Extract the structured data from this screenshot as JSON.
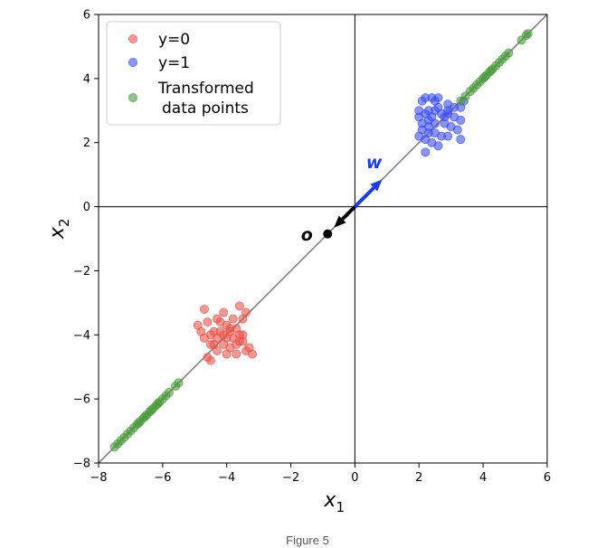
{
  "chart_data": {
    "type": "scatter",
    "xlabel": "x",
    "xlabel_sub": "1",
    "ylabel": "x",
    "ylabel_sub": "2",
    "xlim": [
      -8,
      6
    ],
    "ylim": [
      -8,
      6
    ],
    "x_ticks": [
      -8,
      -6,
      -4,
      -2,
      0,
      2,
      4,
      6
    ],
    "y_ticks": [
      -8,
      -6,
      -4,
      -2,
      0,
      2,
      4,
      6
    ],
    "grid": false,
    "axis_lines": true,
    "legend_position": "top-left",
    "projection_line": {
      "direction": [
        1,
        1
      ],
      "color": "#808080"
    },
    "series": [
      {
        "name": "y=0",
        "color": "#e8544a",
        "points": [
          [
            -4.7,
            -3.2
          ],
          [
            -4.9,
            -3.7
          ],
          [
            -4.6,
            -3.6
          ],
          [
            -4.3,
            -3.5
          ],
          [
            -4.1,
            -3.3
          ],
          [
            -3.8,
            -3.5
          ],
          [
            -3.6,
            -3.1
          ],
          [
            -3.4,
            -3.3
          ],
          [
            -3.5,
            -3.5
          ],
          [
            -4.0,
            -3.7
          ],
          [
            -3.9,
            -3.9
          ],
          [
            -4.2,
            -3.9
          ],
          [
            -4.4,
            -3.9
          ],
          [
            -4.5,
            -4.0
          ],
          [
            -4.3,
            -4.1
          ],
          [
            -4.1,
            -4.0
          ],
          [
            -3.8,
            -4.1
          ],
          [
            -3.6,
            -4.0
          ],
          [
            -3.5,
            -4.2
          ],
          [
            -3.7,
            -4.3
          ],
          [
            -3.9,
            -4.4
          ],
          [
            -4.1,
            -4.3
          ],
          [
            -4.3,
            -4.5
          ],
          [
            -4.5,
            -4.3
          ],
          [
            -4.6,
            -4.7
          ],
          [
            -4.5,
            -4.8
          ],
          [
            -4.0,
            -4.6
          ],
          [
            -3.7,
            -4.6
          ],
          [
            -3.4,
            -4.5
          ],
          [
            -3.2,
            -4.6
          ],
          [
            -3.3,
            -4.4
          ],
          [
            -3.6,
            -4.2
          ],
          [
            -3.9,
            -3.8
          ],
          [
            -4.7,
            -4.1
          ],
          [
            -4.8,
            -3.9
          ],
          [
            -4.0,
            -4.1
          ],
          [
            -4.2,
            -3.6
          ],
          [
            -3.7,
            -3.8
          ],
          [
            -3.5,
            -4.0
          ],
          [
            -4.4,
            -4.3
          ]
        ]
      },
      {
        "name": "y=1",
        "color": "#3d4ef0",
        "points": [
          [
            2.1,
            3.3
          ],
          [
            2.2,
            3.4
          ],
          [
            2.4,
            3.4
          ],
          [
            2.5,
            3.3
          ],
          [
            2.6,
            3.4
          ],
          [
            2.9,
            3.2
          ],
          [
            3.1,
            3.1
          ],
          [
            3.3,
            3.1
          ],
          [
            3.4,
            3.3
          ],
          [
            2.0,
            2.8
          ],
          [
            2.2,
            2.9
          ],
          [
            2.3,
            3.0
          ],
          [
            2.5,
            3.0
          ],
          [
            2.7,
            2.9
          ],
          [
            2.9,
            2.9
          ],
          [
            3.1,
            2.8
          ],
          [
            3.3,
            2.7
          ],
          [
            2.1,
            2.6
          ],
          [
            2.3,
            2.7
          ],
          [
            2.5,
            2.6
          ],
          [
            2.8,
            2.6
          ],
          [
            3.0,
            2.5
          ],
          [
            3.2,
            2.4
          ],
          [
            2.1,
            2.4
          ],
          [
            2.3,
            2.3
          ],
          [
            2.5,
            2.3
          ],
          [
            2.7,
            2.2
          ],
          [
            2.9,
            2.2
          ],
          [
            2.0,
            2.2
          ],
          [
            2.2,
            2.1
          ],
          [
            2.4,
            2.0
          ],
          [
            2.6,
            1.9
          ],
          [
            2.2,
            1.7
          ],
          [
            3.3,
            2.1
          ],
          [
            2.8,
            2.8
          ],
          [
            2.4,
            2.8
          ],
          [
            2.6,
            3.1
          ],
          [
            2.0,
            3.0
          ],
          [
            2.9,
            3.0
          ],
          [
            2.3,
            2.5
          ]
        ]
      },
      {
        "name": "Transformed\ndata points",
        "color": "#4a9a3a",
        "points": [
          [
            -7.5,
            -7.5
          ],
          [
            -7.4,
            -7.4
          ],
          [
            -7.3,
            -7.3
          ],
          [
            -7.1,
            -7.1
          ],
          [
            -7.0,
            -7.0
          ],
          [
            -6.9,
            -6.9
          ],
          [
            -6.8,
            -6.8
          ],
          [
            -6.7,
            -6.7
          ],
          [
            -6.6,
            -6.6
          ],
          [
            -6.5,
            -6.5
          ],
          [
            -6.4,
            -6.4
          ],
          [
            -6.3,
            -6.3
          ],
          [
            -6.2,
            -6.2
          ],
          [
            -6.1,
            -6.1
          ],
          [
            -6.0,
            -6.0
          ],
          [
            -5.8,
            -5.8
          ],
          [
            -5.6,
            -5.6
          ],
          [
            -5.5,
            -5.5
          ],
          [
            -7.2,
            -7.2
          ],
          [
            -6.75,
            -6.75
          ],
          [
            -6.55,
            -6.55
          ],
          [
            -6.35,
            -6.35
          ],
          [
            -6.15,
            -6.15
          ],
          [
            -5.9,
            -5.9
          ],
          [
            3.6,
            3.6
          ],
          [
            3.7,
            3.7
          ],
          [
            3.8,
            3.8
          ],
          [
            3.9,
            3.9
          ],
          [
            4.0,
            4.0
          ],
          [
            4.1,
            4.1
          ],
          [
            4.2,
            4.2
          ],
          [
            4.3,
            4.3
          ],
          [
            4.4,
            4.4
          ],
          [
            4.5,
            4.5
          ],
          [
            4.6,
            4.6
          ],
          [
            4.7,
            4.7
          ],
          [
            4.8,
            4.8
          ],
          [
            5.2,
            5.2
          ],
          [
            5.35,
            5.35
          ],
          [
            5.4,
            5.4
          ],
          [
            3.3,
            3.3
          ],
          [
            3.45,
            3.45
          ],
          [
            4.05,
            4.05
          ],
          [
            4.25,
            4.25
          ]
        ]
      }
    ],
    "annotations": [
      {
        "label": "w",
        "kind": "arrow",
        "from": [
          0,
          0
        ],
        "to": [
          0.85,
          0.85
        ],
        "color": "#1a3cf0",
        "label_at": [
          0.6,
          1.35
        ]
      },
      {
        "label": "o",
        "kind": "arrow-point",
        "from": [
          0,
          0
        ],
        "to": [
          -0.85,
          -0.85
        ],
        "color": "#000000",
        "label_at": [
          -1.5,
          -0.9
        ]
      }
    ]
  },
  "caption": "Figure 5"
}
